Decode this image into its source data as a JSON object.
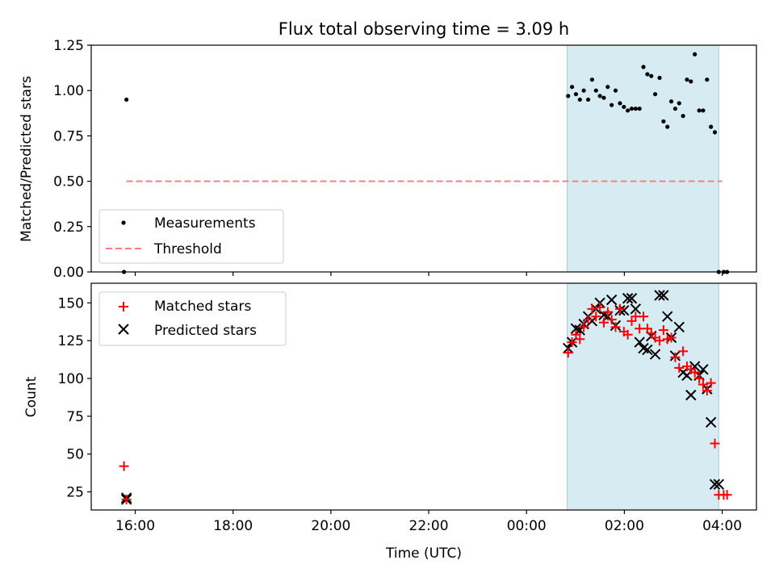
{
  "chart_data": [
    {
      "type": "scatter",
      "title": "Flux total observing time = 3.09 h",
      "xlabel": "",
      "ylabel": "Matched/Predicted stars",
      "xlim": [
        15.1,
        28.7
      ],
      "ylim": [
        0.0,
        1.25
      ],
      "yticks": [
        "0.00",
        "0.25",
        "0.50",
        "0.75",
        "1.00",
        "1.25"
      ],
      "ytick_values": [
        0.0,
        0.25,
        0.5,
        0.75,
        1.0,
        1.25
      ],
      "observing_window": [
        24.83,
        27.93
      ],
      "legend": {
        "position": "lower-left",
        "entries": [
          "Measurements",
          "Threshold"
        ]
      },
      "series": [
        {
          "name": "Measurements",
          "kind": "scatter",
          "color": "#000000",
          "x": [
            15.77,
            15.82,
            24.85,
            24.93,
            25.01,
            25.09,
            25.17,
            25.26,
            25.34,
            25.42,
            25.5,
            25.58,
            25.66,
            25.74,
            25.82,
            25.91,
            25.99,
            26.07,
            26.15,
            26.23,
            26.31,
            26.39,
            26.47,
            26.55,
            26.63,
            26.72,
            26.8,
            26.88,
            26.96,
            27.04,
            27.12,
            27.2,
            27.28,
            27.36,
            27.44,
            27.53,
            27.61,
            27.69,
            27.77,
            27.85,
            27.93,
            28.03,
            28.1
          ],
          "y": [
            0.0,
            0.95,
            0.97,
            1.02,
            0.98,
            0.95,
            1.0,
            0.95,
            1.06,
            1.0,
            0.97,
            0.96,
            1.02,
            0.92,
            1.0,
            0.93,
            0.91,
            0.89,
            0.9,
            0.9,
            0.9,
            1.13,
            1.09,
            1.08,
            0.98,
            1.07,
            0.83,
            0.8,
            0.94,
            0.9,
            0.93,
            0.86,
            1.06,
            1.05,
            1.2,
            0.89,
            0.89,
            1.06,
            0.8,
            0.77,
            0.0,
            0.0,
            0.0
          ]
        },
        {
          "name": "Threshold",
          "kind": "hline",
          "color": "#ff7f7f",
          "x": [
            15.82,
            28.0
          ],
          "y": [
            0.5,
            0.5
          ]
        }
      ]
    },
    {
      "type": "scatter",
      "title": "",
      "xlabel": "Time (UTC)",
      "ylabel": "Count",
      "xlim": [
        15.1,
        28.7
      ],
      "ylim": [
        13,
        163
      ],
      "xticks": [
        "16:00",
        "18:00",
        "20:00",
        "22:00",
        "00:00",
        "02:00",
        "04:00"
      ],
      "xtick_values": [
        16,
        18,
        20,
        22,
        24,
        26,
        28
      ],
      "yticks": [
        "25",
        "50",
        "75",
        "100",
        "125",
        "150"
      ],
      "ytick_values": [
        25,
        50,
        75,
        100,
        125,
        150
      ],
      "observing_window": [
        24.83,
        27.93
      ],
      "legend": {
        "position": "top-left",
        "entries": [
          "Matched stars",
          "Predicted stars"
        ]
      },
      "series": [
        {
          "name": "Matched stars",
          "kind": "plus",
          "color": "#ff0000",
          "x": [
            15.77,
            15.82,
            24.85,
            24.93,
            25.01,
            25.09,
            25.17,
            25.26,
            25.34,
            25.42,
            25.5,
            25.58,
            25.66,
            25.74,
            25.82,
            25.91,
            25.99,
            26.07,
            26.15,
            26.23,
            26.31,
            26.39,
            26.47,
            26.55,
            26.63,
            26.72,
            26.8,
            26.88,
            26.96,
            27.04,
            27.12,
            27.2,
            27.28,
            27.36,
            27.44,
            27.53,
            27.61,
            27.69,
            27.77,
            27.85,
            27.93,
            28.03,
            28.1
          ],
          "y": [
            42,
            20,
            117,
            124,
            129,
            126,
            134,
            139,
            146,
            141,
            147,
            137,
            144,
            139,
            134,
            146,
            131,
            129,
            138,
            141,
            133,
            141,
            133,
            130,
            127,
            125,
            132,
            126,
            127,
            114,
            107,
            118,
            108,
            106,
            104,
            100,
            96,
            92,
            97,
            57,
            23,
            23,
            23
          ]
        },
        {
          "name": "Predicted stars",
          "kind": "x",
          "color": "#000000",
          "x": [
            15.82,
            15.82,
            24.85,
            24.93,
            25.01,
            25.09,
            25.17,
            25.26,
            25.34,
            25.42,
            25.5,
            25.58,
            25.66,
            25.74,
            25.82,
            25.91,
            25.99,
            26.07,
            26.15,
            26.23,
            26.31,
            26.39,
            26.47,
            26.55,
            26.63,
            26.72,
            26.8,
            26.88,
            26.96,
            27.04,
            27.12,
            27.2,
            27.28,
            27.36,
            27.44,
            27.53,
            27.61,
            27.69,
            27.77,
            27.85,
            27.93
          ],
          "y": [
            21,
            20,
            120,
            124,
            133,
            132,
            136,
            141,
            138,
            146,
            150,
            142,
            141,
            152,
            135,
            145,
            145,
            153,
            153,
            146,
            124,
            120,
            119,
            128,
            116,
            155,
            155,
            141,
            127,
            115,
            134,
            104,
            102,
            89,
            108,
            102,
            106,
            93,
            71,
            30,
            30
          ]
        }
      ]
    }
  ]
}
